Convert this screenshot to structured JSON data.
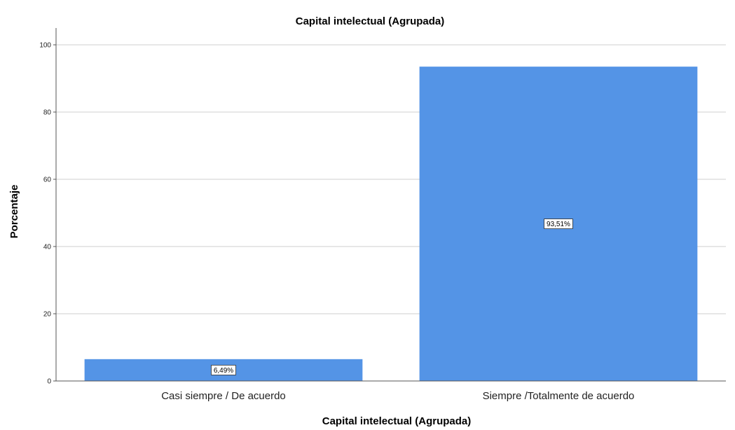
{
  "chart_data": {
    "type": "bar",
    "title": "Capital intelectual (Agrupada)",
    "xlabel": "Capital intelectual (Agrupada)",
    "ylabel": "Porcentaje",
    "categories": [
      "Casi siempre / De acuerdo",
      "Siempre /Totalmente de acuerdo"
    ],
    "values": [
      6.49,
      93.51
    ],
    "data_labels": [
      "6,49%",
      "93,51%"
    ],
    "ylim": [
      0,
      105
    ],
    "yticks": [
      0,
      20,
      40,
      60,
      80,
      100
    ],
    "grid": true,
    "legend": "none",
    "bar_color": "#5494e6"
  }
}
